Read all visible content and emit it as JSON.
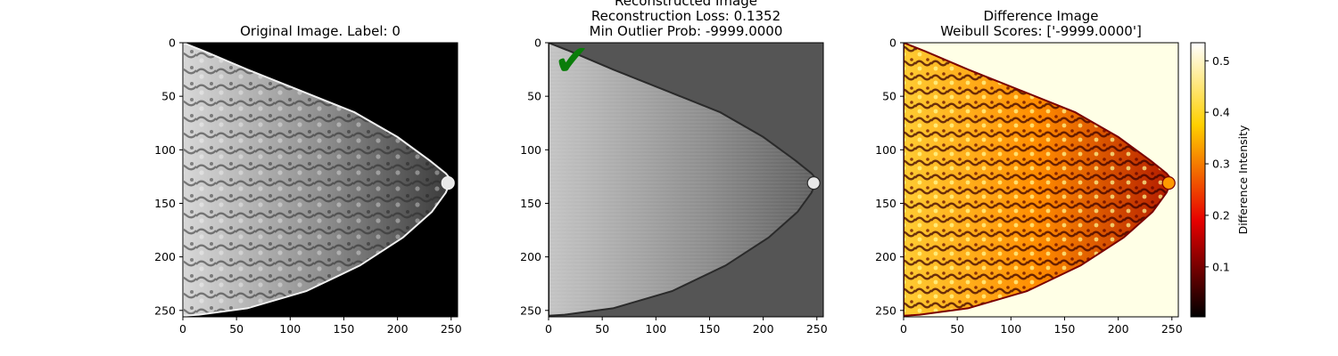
{
  "chart_data": [
    {
      "type": "heatmap",
      "panel": "original",
      "title_lines": [
        "Original Image. Label: 0"
      ],
      "x_ticks": [
        0,
        50,
        100,
        150,
        200,
        250
      ],
      "y_ticks": [
        0,
        50,
        100,
        150,
        200,
        250
      ],
      "xlim": [
        0,
        256
      ],
      "ylim": [
        256,
        0
      ],
      "colormap": "gray",
      "background": "#000000"
    },
    {
      "type": "heatmap",
      "panel": "reconstructed",
      "title_lines": [
        "Reconstructed Image",
        "Reconstruction Loss: 0.1352",
        "Min Outlier Prob: -9999.0000"
      ],
      "x_ticks": [
        0,
        50,
        100,
        150,
        200,
        250
      ],
      "y_ticks": [
        0,
        50,
        100,
        150,
        200,
        250
      ],
      "xlim": [
        0,
        256
      ],
      "ylim": [
        256,
        0
      ],
      "colormap": "gray",
      "background": "#555555",
      "marker": {
        "symbol": "✔",
        "color": "#0a7d0a"
      }
    },
    {
      "type": "heatmap",
      "panel": "difference",
      "title_lines": [
        "Difference Image",
        "Weibull Scores: ['-9999.0000']"
      ],
      "x_ticks": [
        0,
        50,
        100,
        150,
        200,
        250
      ],
      "y_ticks": [
        0,
        50,
        100,
        150,
        200,
        250
      ],
      "xlim": [
        0,
        256
      ],
      "ylim": [
        256,
        0
      ],
      "colormap": "hot",
      "background": "#ffffe6",
      "colorbar": {
        "label": "Difference Intensity",
        "ticks": [
          0.1,
          0.2,
          0.3,
          0.4,
          0.5
        ],
        "range": [
          0.003,
          0.535
        ]
      }
    }
  ]
}
